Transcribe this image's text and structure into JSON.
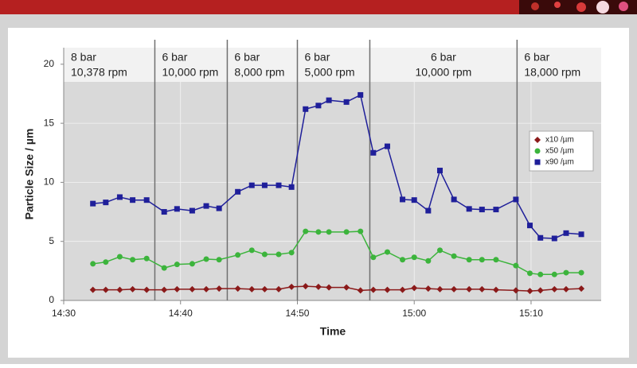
{
  "chart_data": {
    "type": "line",
    "xlabel": "Time",
    "ylabel": "Particle Size / µm",
    "x": [
      872.5,
      873.6,
      874.8,
      875.9,
      877.1,
      878.6,
      879.7,
      881.0,
      882.2,
      883.3,
      884.9,
      886.1,
      887.2,
      888.4,
      889.5,
      890.7,
      891.8,
      892.7,
      894.2,
      895.4,
      896.5,
      897.7,
      899.0,
      900.0,
      901.2,
      902.2,
      903.4,
      904.7,
      905.8,
      907.0,
      908.7,
      909.9,
      910.8,
      912.0,
      913.0,
      914.3
    ],
    "series": [
      {
        "name": "x10 /µm",
        "color": "#8b1a1a",
        "marker": "diamond",
        "values": [
          0.9,
          0.9,
          0.9,
          0.95,
          0.9,
          0.9,
          0.95,
          0.95,
          0.95,
          1.0,
          1.0,
          0.95,
          0.95,
          0.95,
          1.15,
          1.2,
          1.15,
          1.1,
          1.1,
          0.85,
          0.9,
          0.9,
          0.9,
          1.05,
          1.0,
          0.95,
          0.95,
          0.95,
          0.95,
          0.9,
          0.85,
          0.8,
          0.85,
          0.95,
          0.95,
          1.0
        ]
      },
      {
        "name": "x50 /µm",
        "color": "#3cb43c",
        "marker": "circle",
        "values": [
          3.1,
          3.25,
          3.7,
          3.45,
          3.55,
          2.75,
          3.05,
          3.1,
          3.5,
          3.45,
          3.85,
          4.25,
          3.9,
          3.9,
          4.05,
          5.85,
          5.8,
          5.8,
          5.8,
          5.85,
          3.65,
          4.1,
          3.45,
          3.65,
          3.35,
          4.25,
          3.75,
          3.45,
          3.45,
          3.45,
          2.95,
          2.3,
          2.2,
          2.2,
          2.35,
          2.35
        ]
      },
      {
        "name": "x90 /µm",
        "color": "#1f1f9a",
        "marker": "square",
        "values": [
          8.2,
          8.3,
          8.75,
          8.5,
          8.5,
          7.5,
          7.75,
          7.6,
          8.0,
          7.8,
          9.2,
          9.75,
          9.75,
          9.75,
          9.6,
          16.2,
          16.5,
          16.95,
          16.8,
          17.4,
          12.5,
          13.05,
          8.55,
          8.5,
          7.6,
          11.0,
          8.55,
          7.75,
          7.7,
          7.7,
          8.55,
          6.35,
          5.3,
          5.25,
          5.7,
          5.6
        ]
      }
    ],
    "dividers": [
      877.8,
      884.0,
      890.0,
      896.2,
      908.8
    ],
    "phases": [
      {
        "pressure": "8 bar",
        "speed": "10,378 rpm"
      },
      {
        "pressure": "6 bar",
        "speed": "10,000 rpm"
      },
      {
        "pressure": "6 bar",
        "speed": "8,000 rpm"
      },
      {
        "pressure": "6 bar",
        "speed": "5,000 rpm"
      },
      {
        "pressure": "6 bar",
        "speed": "10,000 rpm"
      },
      {
        "pressure": "6 bar",
        "speed": "18,000 rpm"
      }
    ],
    "xlim": [
      870,
      916
    ],
    "xticks": [
      {
        "value": 870,
        "label": "14:30"
      },
      {
        "value": 880,
        "label": "14:40"
      },
      {
        "value": 890,
        "label": "14:50"
      },
      {
        "value": 900,
        "label": "15:00"
      },
      {
        "value": 910,
        "label": "15:10"
      }
    ],
    "ylim": [
      0,
      21.4
    ],
    "yticks": [
      0,
      5,
      10,
      15,
      20
    ],
    "grid": true,
    "legend": "right"
  }
}
